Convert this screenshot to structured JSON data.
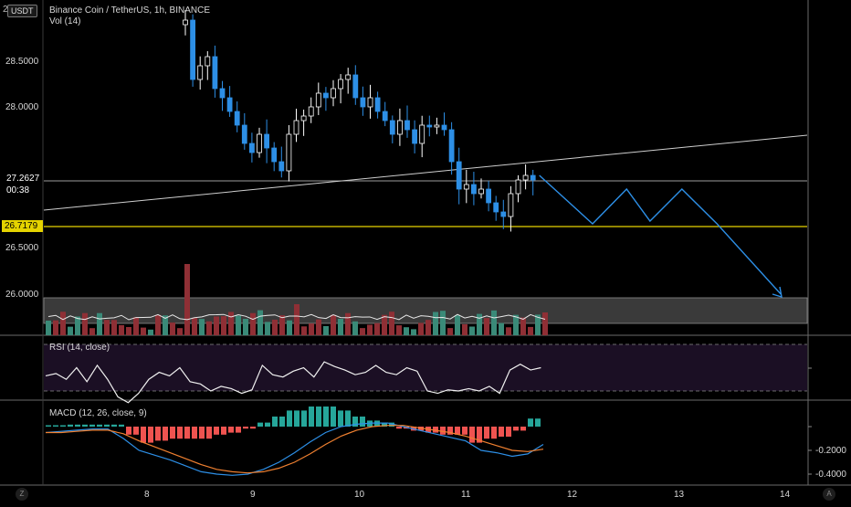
{
  "header": {
    "currency_button": "USDT",
    "symbol_title": "Binance Coin / TetherUS, 1h, BINANCE",
    "volume_indicator": "Vol (14)",
    "rsi_indicator": "RSI (14, close)",
    "macd_indicator": "MACD (12, 26, close, 9)",
    "top_cut_label": "2"
  },
  "price_axis": {
    "ticks": [
      "28.5000",
      "28.0000",
      "26.5000",
      "26.0000"
    ],
    "current_price": "27.2627",
    "countdown": "00:38",
    "support_price": "26.7179"
  },
  "macd_axis": {
    "ticks": [
      "-0.2000",
      "-0.4000"
    ]
  },
  "time_axis": {
    "ticks": [
      "8",
      "9",
      "10",
      "11",
      "12",
      "13",
      "14"
    ]
  },
  "buttons": {
    "left_corner": "Z",
    "right_corner": "A"
  },
  "colors": {
    "up": "#ffffff",
    "down": "#2d8fe6",
    "support_line": "#e5d300",
    "forecast": "#2d8fe6",
    "volume_up": "#3a8a78",
    "volume_down": "#8f2f35",
    "rsi_band": "#1b0f24",
    "macd_hist_pos": "#26a69a",
    "macd_hist_neg": "#ef5350"
  },
  "chart_data": [
    {
      "type": "candlestick",
      "title": "Binance Coin / TetherUS, 1h, BINANCE",
      "x_ticks": [
        "8",
        "9",
        "10",
        "11",
        "12",
        "13",
        "14"
      ],
      "y_ticks": [
        28.5,
        28.0,
        26.5,
        26.0
      ],
      "close_path": [
        28.95,
        28.3,
        28.45,
        28.55,
        28.2,
        28.1,
        27.95,
        27.8,
        27.6,
        27.5,
        27.7,
        27.55,
        27.4,
        27.3,
        27.7,
        27.85,
        27.9,
        28.0,
        28.15,
        28.1,
        28.2,
        28.3,
        28.35,
        28.1,
        28.0,
        28.1,
        27.95,
        27.85,
        27.7,
        27.85,
        27.75,
        27.6,
        27.8,
        27.78,
        27.8,
        27.75,
        27.4,
        27.1,
        27.15,
        27.05,
        27.1,
        26.95,
        26.85,
        26.8,
        27.05,
        27.2,
        27.25,
        27.2
      ],
      "current_price": 27.2627,
      "support_level": 26.7179,
      "forecast_path": [
        [
          11.68,
          27.25
        ],
        [
          12.18,
          26.72
        ],
        [
          12.5,
          27.1
        ],
        [
          12.72,
          26.75
        ],
        [
          13.02,
          27.1
        ],
        [
          13.35,
          26.72
        ],
        [
          13.95,
          25.95
        ]
      ]
    },
    {
      "type": "bar",
      "title": "Vol (14)"
    },
    {
      "type": "line",
      "title": "RSI (14, close)",
      "series": [
        {
          "values": [
            43,
            45,
            40,
            50,
            38,
            52,
            40,
            25,
            20,
            28,
            40,
            46,
            43,
            50,
            38,
            36,
            30,
            34,
            32,
            28,
            31,
            52,
            44,
            42,
            47,
            50,
            42,
            55,
            51,
            48,
            44,
            46,
            52,
            46,
            44,
            50,
            47,
            30,
            28,
            31,
            30,
            32,
            30,
            34,
            28,
            48,
            53,
            48,
            50
          ]
        }
      ]
    },
    {
      "type": "line",
      "title": "MACD (12, 26, close, 9)",
      "y_ticks": [
        -0.2,
        -0.4
      ],
      "series": [
        {
          "values": [
            -0.05,
            -0.04,
            -0.03,
            -0.02,
            -0.02,
            -0.1,
            -0.2,
            -0.24,
            -0.28,
            -0.33,
            -0.38,
            -0.4,
            -0.41,
            -0.4,
            -0.36,
            -0.3,
            -0.22,
            -0.13,
            -0.05,
            0.0,
            0.02,
            0.03,
            0.03,
            0.0,
            -0.03,
            -0.06,
            -0.09,
            -0.12,
            -0.2,
            -0.22,
            -0.25,
            -0.23,
            -0.15
          ]
        },
        {
          "values": [
            -0.05,
            -0.05,
            -0.04,
            -0.03,
            -0.03,
            -0.06,
            -0.12,
            -0.17,
            -0.22,
            -0.27,
            -0.32,
            -0.36,
            -0.38,
            -0.39,
            -0.38,
            -0.35,
            -0.3,
            -0.23,
            -0.15,
            -0.08,
            -0.03,
            0.0,
            0.01,
            0.01,
            -0.01,
            -0.03,
            -0.05,
            -0.08,
            -0.12,
            -0.16,
            -0.2,
            -0.21,
            -0.19
          ]
        }
      ]
    }
  ]
}
